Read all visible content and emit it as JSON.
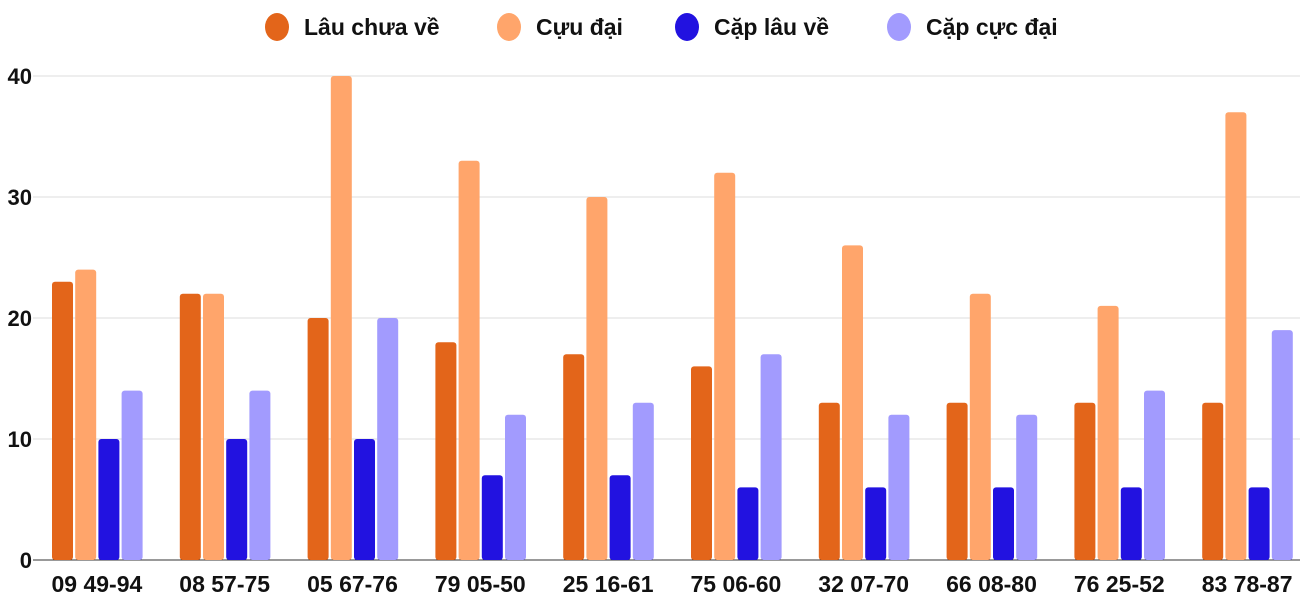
{
  "chart_data": {
    "type": "bar",
    "categories": [
      "09 49-94",
      "08 57-75",
      "05 67-76",
      "79 05-50",
      "25 16-61",
      "75 06-60",
      "32 07-70",
      "66 08-80",
      "76 25-52",
      "83 78-87"
    ],
    "series": [
      {
        "name": "Lâu chưa về",
        "color": "#E3651A",
        "values": [
          23,
          22,
          20,
          18,
          17,
          16,
          13,
          13,
          13,
          13
        ]
      },
      {
        "name": "Cựu đại",
        "color": "#FFA56B",
        "values": [
          24,
          22,
          40,
          33,
          30,
          32,
          26,
          22,
          21,
          37
        ]
      },
      {
        "name": "Cặp lâu về",
        "color": "#2212E0",
        "values": [
          10,
          10,
          10,
          7,
          7,
          6,
          6,
          6,
          6,
          6
        ]
      },
      {
        "name": "Cặp cực đại",
        "color": "#A29BFE",
        "values": [
          14,
          14,
          20,
          12,
          13,
          17,
          12,
          12,
          14,
          19
        ]
      }
    ],
    "yticks": [
      0,
      10,
      20,
      30,
      40
    ],
    "ylim": [
      0,
      40
    ],
    "grid": true,
    "legend": "top-center",
    "title": "",
    "xlabel": "",
    "ylabel": ""
  }
}
